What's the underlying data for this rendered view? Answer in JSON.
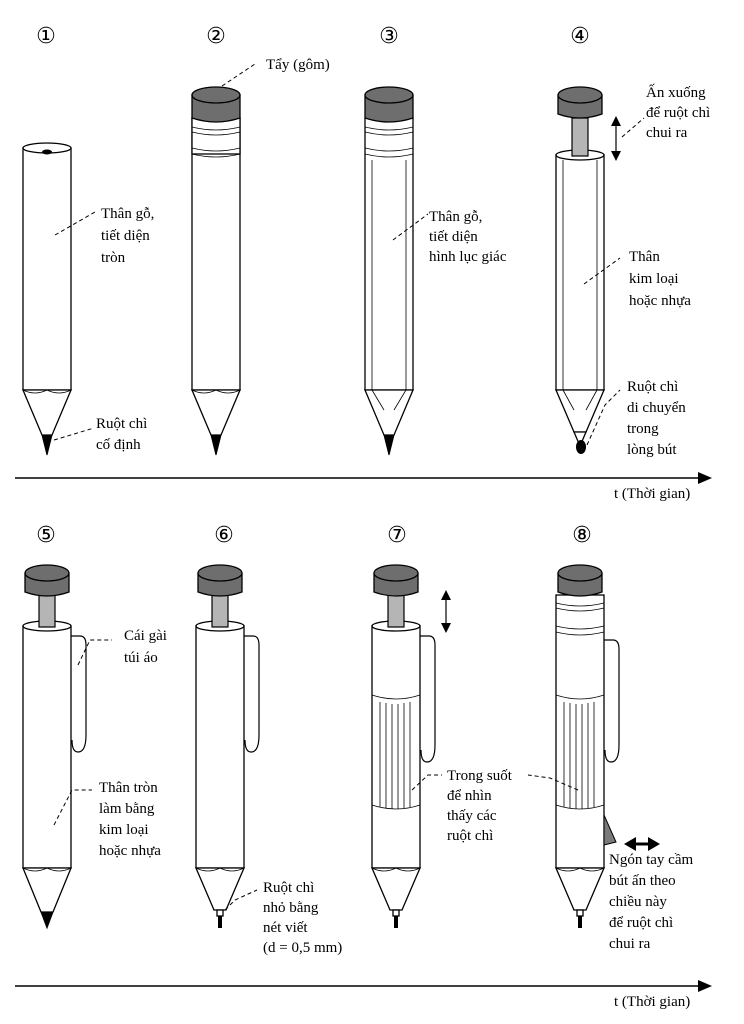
{
  "numbers": [
    "①",
    "②",
    "③",
    "④",
    "⑤",
    "⑥",
    "⑦",
    "⑧"
  ],
  "axis_label": "t (Thời gian)",
  "labels": {
    "p1_body": [
      "Thân gỗ,",
      "tiết diện",
      "tròn"
    ],
    "p1_lead": [
      "Ruột chì",
      "cố định"
    ],
    "p2_eraser": [
      "Tẩy (gôm)"
    ],
    "p3_body": [
      "Thân gỗ,",
      "tiết diện",
      "hình lục giác"
    ],
    "p4_press": [
      "Ấn xuống",
      "để ruột chì",
      "chui ra"
    ],
    "p4_body": [
      "Thân",
      "kim loại",
      "hoặc nhựa"
    ],
    "p4_lead": [
      "Ruột chì",
      "di chuyển",
      "trong",
      "lòng bút"
    ],
    "p5_clip": [
      "Cái gài",
      "túi áo"
    ],
    "p5_body": [
      "Thân tròn",
      "làm bằng",
      "kim loại",
      "hoặc nhựa"
    ],
    "p6_lead": [
      "Ruột chì",
      "nhỏ bằng",
      "nét viết",
      "(d = 0,5 mm)"
    ],
    "p7_clear": [
      "Trong suốt",
      "để nhìn",
      "thấy các",
      "ruột chì"
    ],
    "p8_grip": [
      "Ngón tay cầm",
      "bút ấn theo",
      "chiều này",
      "để ruột chì",
      "chui ra"
    ]
  }
}
